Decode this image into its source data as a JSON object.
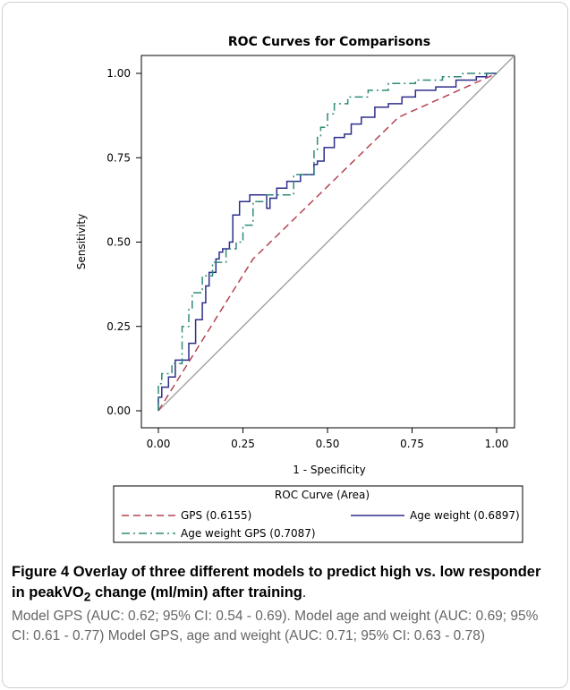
{
  "chart_data": {
    "type": "line",
    "title": "ROC Curves for Comparisons",
    "xlabel": "1 - Specificity",
    "ylabel": "Sensitivity",
    "xlim": [
      0,
      1
    ],
    "ylim": [
      0,
      1
    ],
    "x_ticks": [
      "0.00",
      "0.25",
      "0.50",
      "0.75",
      "1.00"
    ],
    "y_ticks": [
      "0.00",
      "0.25",
      "0.50",
      "0.75",
      "1.00"
    ],
    "grid": false,
    "legend": {
      "title": "ROC Curve (Area)",
      "placement": "bottom"
    },
    "series": [
      {
        "name": "GPS  (0.6155)",
        "color": "#b3434f",
        "style": "dashed",
        "x": [
          0,
          0.28,
          0.71,
          1.0
        ],
        "y": [
          0,
          0.45,
          0.87,
          1.0
        ]
      },
      {
        "name": "Age weight  (0.6897)",
        "color": "#2e2e8c",
        "style": "solid",
        "x": [
          0,
          0,
          0.01,
          0.01,
          0.03,
          0.03,
          0.05,
          0.05,
          0.09,
          0.09,
          0.11,
          0.11,
          0.13,
          0.13,
          0.14,
          0.14,
          0.15,
          0.15,
          0.17,
          0.17,
          0.18,
          0.18,
          0.19,
          0.19,
          0.21,
          0.21,
          0.22,
          0.22,
          0.24,
          0.24,
          0.26,
          0.26,
          0.27,
          0.27,
          0.32,
          0.32,
          0.33,
          0.33,
          0.35,
          0.35,
          0.38,
          0.38,
          0.42,
          0.42,
          0.46,
          0.46,
          0.47,
          0.47,
          0.49,
          0.49,
          0.52,
          0.52,
          0.55,
          0.55,
          0.57,
          0.57,
          0.6,
          0.6,
          0.64,
          0.64,
          0.68,
          0.68,
          0.72,
          0.72,
          0.76,
          0.76,
          0.82,
          0.82,
          0.88,
          0.88,
          0.94,
          0.94,
          0.97,
          0.97,
          1.0
        ],
        "y": [
          0,
          0.04,
          0.04,
          0.07,
          0.07,
          0.1,
          0.1,
          0.15,
          0.15,
          0.2,
          0.2,
          0.27,
          0.27,
          0.32,
          0.32,
          0.37,
          0.37,
          0.41,
          0.41,
          0.45,
          0.45,
          0.47,
          0.47,
          0.48,
          0.48,
          0.5,
          0.5,
          0.58,
          0.58,
          0.62,
          0.62,
          0.62,
          0.62,
          0.64,
          0.64,
          0.6,
          0.6,
          0.63,
          0.63,
          0.66,
          0.66,
          0.68,
          0.68,
          0.7,
          0.7,
          0.73,
          0.73,
          0.74,
          0.74,
          0.78,
          0.78,
          0.81,
          0.81,
          0.82,
          0.82,
          0.85,
          0.85,
          0.87,
          0.87,
          0.9,
          0.9,
          0.91,
          0.91,
          0.93,
          0.93,
          0.95,
          0.95,
          0.96,
          0.96,
          0.98,
          0.98,
          0.99,
          0.99,
          1.0,
          1.0
        ]
      },
      {
        "name": "Age weight GPS  (0.7087)",
        "color": "#2e8a78",
        "style": "dashdot",
        "x": [
          0,
          0,
          0.01,
          0.01,
          0.04,
          0.04,
          0.07,
          0.07,
          0.09,
          0.09,
          0.1,
          0.1,
          0.13,
          0.13,
          0.16,
          0.16,
          0.2,
          0.2,
          0.23,
          0.23,
          0.25,
          0.25,
          0.28,
          0.28,
          0.32,
          0.32,
          0.35,
          0.35,
          0.4,
          0.4,
          0.46,
          0.46,
          0.47,
          0.47,
          0.48,
          0.48,
          0.5,
          0.5,
          0.52,
          0.52,
          0.56,
          0.56,
          0.62,
          0.62,
          0.68,
          0.68,
          0.76,
          0.76,
          0.84,
          0.84,
          0.9,
          0.9,
          1.0
        ],
        "y": [
          0,
          0.08,
          0.08,
          0.11,
          0.11,
          0.14,
          0.14,
          0.25,
          0.25,
          0.3,
          0.3,
          0.35,
          0.35,
          0.4,
          0.4,
          0.44,
          0.44,
          0.48,
          0.48,
          0.5,
          0.5,
          0.55,
          0.55,
          0.62,
          0.62,
          0.64,
          0.64,
          0.64,
          0.64,
          0.7,
          0.7,
          0.77,
          0.77,
          0.81,
          0.81,
          0.84,
          0.84,
          0.88,
          0.88,
          0.91,
          0.91,
          0.93,
          0.93,
          0.95,
          0.95,
          0.97,
          0.97,
          0.98,
          0.98,
          0.99,
          0.99,
          1.0,
          1.0
        ]
      }
    ],
    "reference_line": {
      "x": [
        0,
        1
      ],
      "y": [
        0,
        1
      ],
      "color": "#a6a6a6"
    }
  },
  "caption": {
    "figure_label": "Figure 4",
    "heading_pre": " Overlay of three different models to predict high vs. low responder in peakVO",
    "heading_sub": "2",
    "heading_post": " change (ml/min) after training",
    "heading_end": ".",
    "body": "Model GPS (AUC: 0.62; 95% CI: 0.54 - 0.69). Model age and weight (AUC: 0.69; 95% CI: 0.61 - 0.77) Model GPS, age and weight (AUC: 0.71; 95% CI: 0.63 - 0.78)"
  }
}
